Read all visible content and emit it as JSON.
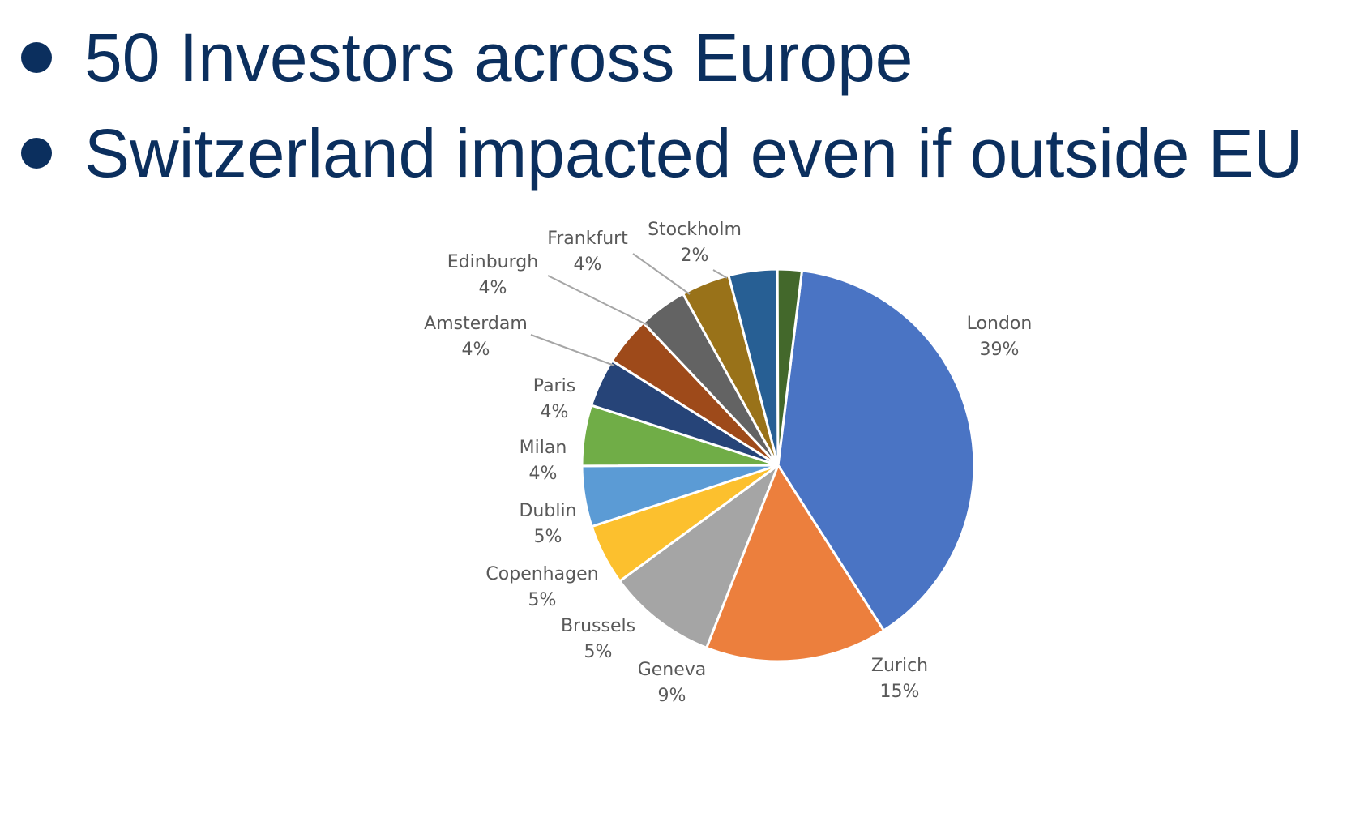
{
  "bullets": [
    "50 Investors across Europe",
    "Switzerland impacted even if outside EU"
  ],
  "chart_data": {
    "type": "pie",
    "title": "",
    "start_angle_deg": 7,
    "direction": "clockwise",
    "slices": [
      {
        "label": "London",
        "percent_label": "39%",
        "value": 39,
        "color": "#4a74c4"
      },
      {
        "label": "Zurich",
        "percent_label": "15%",
        "value": 15,
        "color": "#ec7f3d"
      },
      {
        "label": "Geneva",
        "percent_label": "9%",
        "value": 9,
        "color": "#a5a5a5"
      },
      {
        "label": "Brussels",
        "percent_label": "5%",
        "value": 5,
        "color": "#fcc02e"
      },
      {
        "label": "Copenhagen",
        "percent_label": "5%",
        "value": 5,
        "color": "#5b9bd5"
      },
      {
        "label": "Dublin",
        "percent_label": "5%",
        "value": 5,
        "color": "#70ad47"
      },
      {
        "label": "Milan",
        "percent_label": "4%",
        "value": 4,
        "color": "#264478"
      },
      {
        "label": "Paris",
        "percent_label": "4%",
        "value": 4,
        "color": "#9e4a1a"
      },
      {
        "label": "Amsterdam",
        "percent_label": "4%",
        "value": 4,
        "color": "#636363"
      },
      {
        "label": "Edinburgh",
        "percent_label": "4%",
        "value": 4,
        "color": "#997219"
      },
      {
        "label": "Frankfurt",
        "percent_label": "4%",
        "value": 4,
        "color": "#275f94"
      },
      {
        "label": "Stockholm",
        "percent_label": "2%",
        "value": 2,
        "color": "#43682b"
      }
    ]
  }
}
